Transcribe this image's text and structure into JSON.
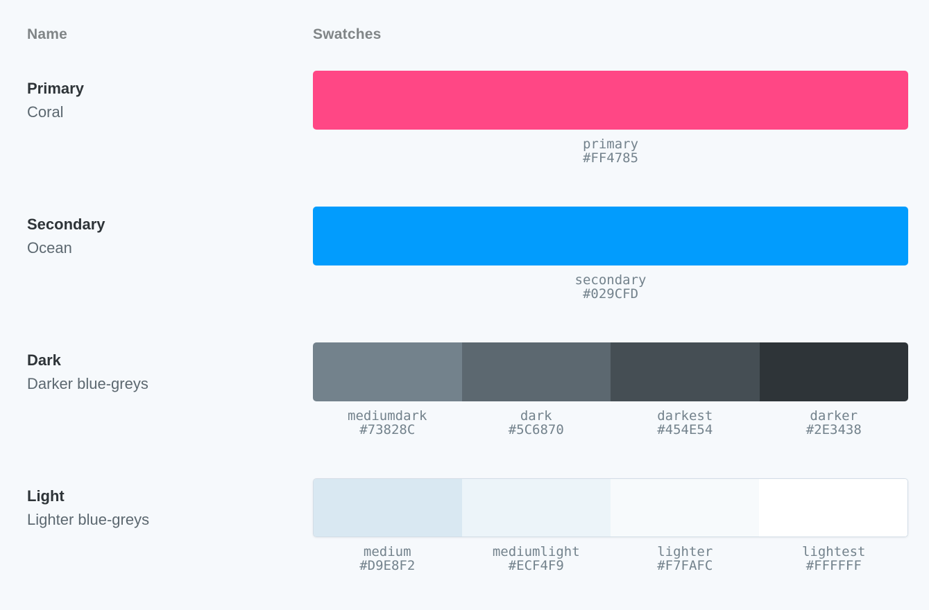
{
  "header": {
    "name_label": "Name",
    "swatches_label": "Swatches"
  },
  "rows": [
    {
      "title": "Primary",
      "subtitle": "Coral",
      "swatches": [
        {
          "name": "primary",
          "hex": "#FF4785"
        }
      ]
    },
    {
      "title": "Secondary",
      "subtitle": "Ocean",
      "swatches": [
        {
          "name": "secondary",
          "hex": "#029CFD"
        }
      ]
    },
    {
      "title": "Dark",
      "subtitle": "Darker blue-greys",
      "swatches": [
        {
          "name": "mediumdark",
          "hex": "#73828C"
        },
        {
          "name": "dark",
          "hex": "#5C6870"
        },
        {
          "name": "darkest",
          "hex": "#454E54"
        },
        {
          "name": "darker",
          "hex": "#2E3438"
        }
      ]
    },
    {
      "title": "Light",
      "subtitle": "Lighter blue-greys",
      "swatches": [
        {
          "name": "medium",
          "hex": "#D9E8F2"
        },
        {
          "name": "mediumlight",
          "hex": "#ECF4F9"
        },
        {
          "name": "lighter",
          "hex": "#F7FAFC"
        },
        {
          "name": "lightest",
          "hex": "#FFFFFF"
        }
      ]
    }
  ]
}
